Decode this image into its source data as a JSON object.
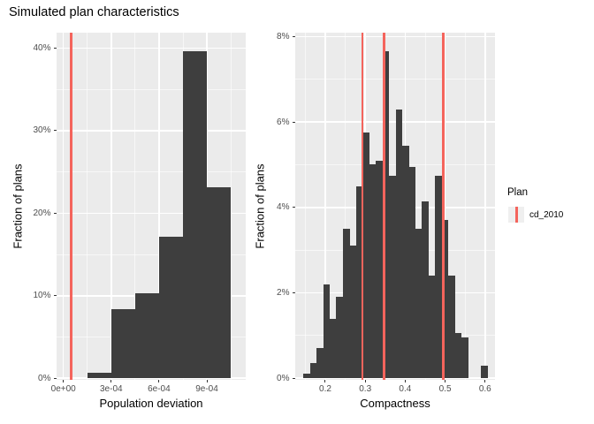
{
  "title": "Simulated plan characteristics",
  "legend": {
    "title": "Plan",
    "items": [
      {
        "label": "cd_2010",
        "color": "#F4645C"
      }
    ]
  },
  "colors": {
    "bar": "#3E3E3E",
    "reference_line": "#F4645C",
    "panel_background": "#EBEBEB",
    "tick_label": "#4D4D4D"
  },
  "chart_data": [
    {
      "type": "bar",
      "subtype": "histogram",
      "xlabel": "Population deviation",
      "ylabel": "Fraction of plans",
      "xlim": [
        -4.55e-05,
        0.001144
      ],
      "ylim": [
        0,
        41.87
      ],
      "grid": true,
      "x_ticks": {
        "values": [
          0,
          0.0003,
          0.0006,
          0.0009
        ],
        "labels": [
          "0e+00",
          "3e-04",
          "6e-04",
          "9e-04"
        ]
      },
      "y_ticks": {
        "values": [
          0,
          10,
          20,
          30,
          40
        ],
        "labels": [
          "0%",
          "10%",
          "20%",
          "30%",
          "40%"
        ]
      },
      "bins": {
        "start": 0.00015,
        "width": 0.00015,
        "heights": [
          0.7,
          8.4,
          10.3,
          17.1,
          39.6,
          23.1
        ]
      },
      "vlines": [
        5e-05
      ]
    },
    {
      "type": "bar",
      "subtype": "histogram",
      "xlabel": "Compactness",
      "ylabel": "Fraction of plans",
      "xlim": [
        0.1237,
        0.6248
      ],
      "ylim": [
        0,
        8.09
      ],
      "grid": true,
      "x_ticks": {
        "values": [
          0.2,
          0.3,
          0.4,
          0.5,
          0.6
        ],
        "labels": [
          "0.2",
          "0.3",
          "0.4",
          "0.5",
          "0.6"
        ]
      },
      "y_ticks": {
        "values": [
          0,
          2,
          4,
          6,
          8
        ],
        "labels": [
          "0%",
          "2%",
          "4%",
          "6%",
          "8%"
        ]
      },
      "bins": {
        "start": 0.145,
        "width": 0.0165,
        "heights": [
          0.1,
          0.35,
          0.7,
          2.2,
          1.4,
          1.9,
          3.5,
          3.1,
          4.5,
          5.75,
          5.0,
          5.1,
          7.65,
          4.75,
          6.3,
          5.45,
          4.95,
          3.5,
          4.15,
          2.4,
          4.75,
          3.7,
          2.4,
          1.05,
          0.95,
          0,
          0,
          0.3
        ]
      },
      "vlines": [
        0.293,
        0.347,
        0.495
      ]
    }
  ]
}
